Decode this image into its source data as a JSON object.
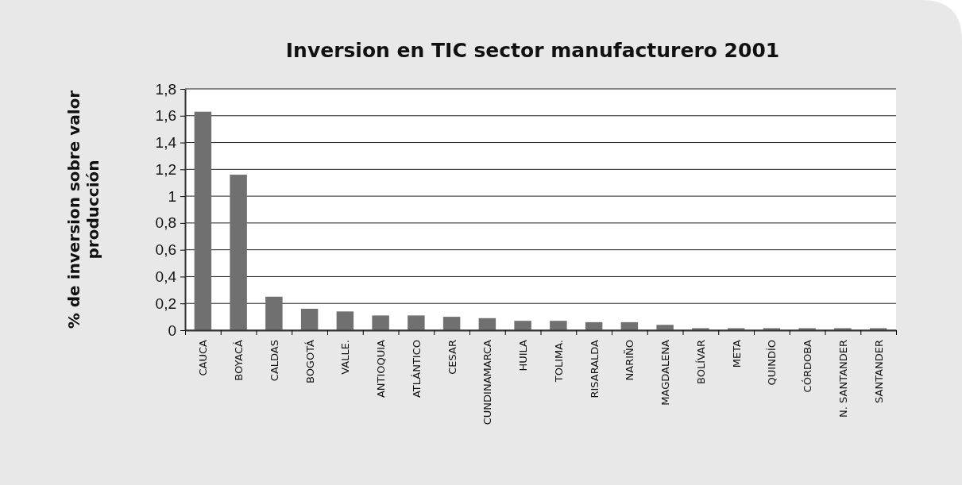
{
  "chart_data": {
    "type": "bar",
    "title": "Inversion en TIC sector manufacturero 2001",
    "ylabel": "% de inversion sobre valor producción",
    "categories": [
      "CAUCA",
      "BOYACÁ",
      "CALDAS",
      "BOGOTÁ",
      "VALLE.",
      "ANTIOQUIA",
      "ATLÁNTICO",
      "CESAR",
      "CUNDINAMARCA",
      "HUILA",
      "TOLIMA.",
      "RISARALDA",
      "NARIÑO",
      "MAGDALENA",
      "BOLÍVAR",
      "META",
      "QUINDÍO",
      "CÓRDOBA",
      "N. SANTANDER",
      "SANTANDER"
    ],
    "values": [
      1.63,
      1.16,
      0.25,
      0.16,
      0.14,
      0.11,
      0.11,
      0.1,
      0.09,
      0.07,
      0.07,
      0.06,
      0.06,
      0.04,
      0.015,
      0.015,
      0.015,
      0.015,
      0.015,
      0.015
    ],
    "color": "#707070",
    "ylim": [
      0,
      1.8
    ],
    "yticks": [
      0,
      {
        "value": 0.2,
        "label": "0,2"
      },
      {
        "value": 0.4,
        "label": "0,4"
      },
      {
        "value": 0.6,
        "label": "0,6"
      },
      {
        "value": 0.8,
        "label": "0,8"
      },
      1,
      {
        "value": 1.2,
        "label": "1,2"
      },
      {
        "value": 1.4,
        "label": "1,4"
      },
      {
        "value": 1.6,
        "label": "1,6"
      },
      {
        "value": 1.8,
        "label": "1,8"
      }
    ],
    "grid": "y"
  }
}
